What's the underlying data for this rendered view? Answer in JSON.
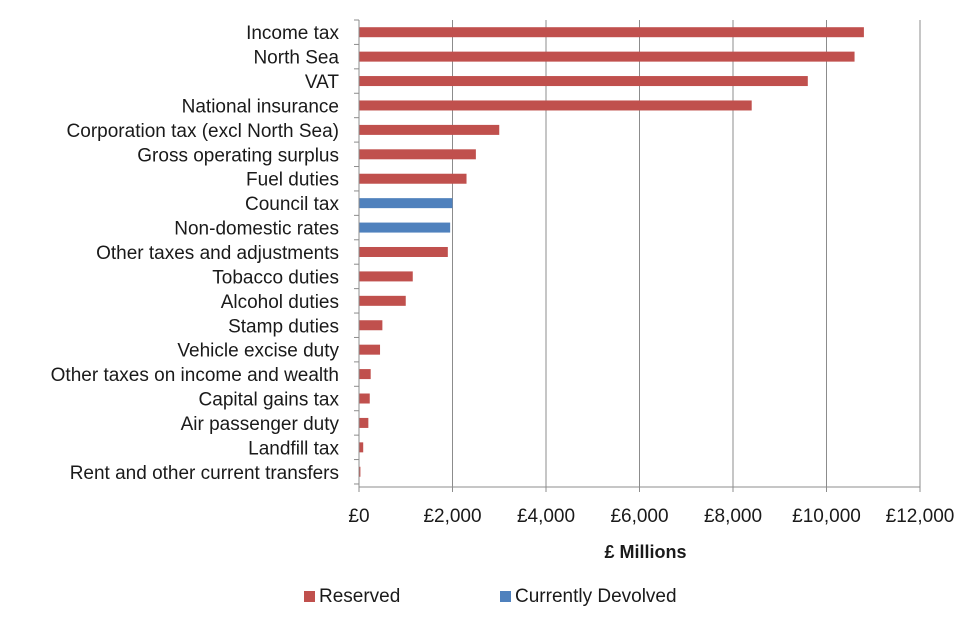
{
  "chart_data": {
    "type": "bar",
    "orientation": "horizontal",
    "categories": [
      "Income tax",
      "North Sea",
      "VAT",
      "National insurance",
      "Corporation tax (excl North Sea)",
      "Gross operating surplus",
      "Fuel duties",
      "Council tax",
      "Non-domestic rates",
      "Other taxes and adjustments",
      "Tobacco duties",
      "Alcohol duties",
      "Stamp duties",
      "Vehicle excise duty",
      "Other taxes on income and wealth",
      "Capital gains tax",
      "Air passenger duty",
      "Landfill tax",
      "Rent and other current transfers"
    ],
    "values": [
      10800,
      10600,
      9600,
      8400,
      3000,
      2500,
      2300,
      2000,
      1950,
      1900,
      1150,
      1000,
      500,
      450,
      250,
      230,
      200,
      90,
      30
    ],
    "groups": [
      "Reserved",
      "Reserved",
      "Reserved",
      "Reserved",
      "Reserved",
      "Reserved",
      "Reserved",
      "Currently Devolved",
      "Currently Devolved",
      "Reserved",
      "Reserved",
      "Reserved",
      "Reserved",
      "Reserved",
      "Reserved",
      "Reserved",
      "Reserved",
      "Reserved",
      "Reserved"
    ],
    "xlabel": "£ Millions",
    "ylabel": "",
    "xlim": [
      0,
      12000
    ],
    "xticks": [
      0,
      2000,
      4000,
      6000,
      8000,
      10000,
      12000
    ],
    "xtick_labels": [
      "£0",
      "£2,000",
      "£4,000",
      "£6,000",
      "£8,000",
      "£10,000",
      "£12,000"
    ],
    "grid": "vertical",
    "legend": {
      "position": "bottom",
      "entries": [
        {
          "name": "Reserved",
          "color": "#c0504d"
        },
        {
          "name": "Currently Devolved",
          "color": "#4f81bd"
        }
      ]
    },
    "colors": {
      "Reserved": "#c0504d",
      "Currently Devolved": "#4f81bd",
      "grid": "#8c8c8c",
      "axis": "#8c8c8c"
    }
  }
}
